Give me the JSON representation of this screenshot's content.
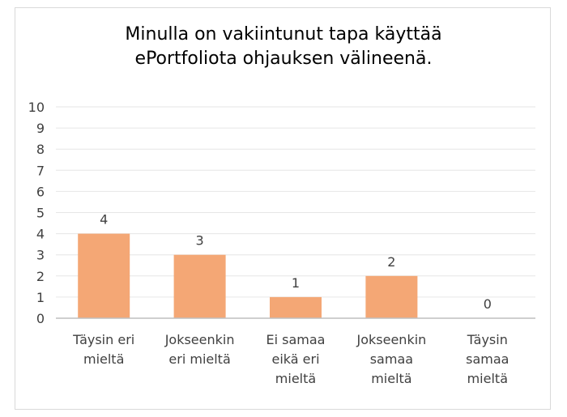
{
  "chart_data": {
    "type": "bar",
    "title_lines": [
      "Minulla on vakiintunut tapa käyttää",
      "ePortfoliota ohjauksen välineenä."
    ],
    "categories": [
      [
        "Täysin eri",
        "mieltä"
      ],
      [
        "Jokseenkin",
        "eri mieltä"
      ],
      [
        "Ei samaa",
        "eikä eri",
        "mieltä"
      ],
      [
        "Jokseenkin",
        "samaa",
        "mieltä"
      ],
      [
        "Täysin",
        "samaa",
        "mieltä"
      ]
    ],
    "values": [
      4,
      3,
      1,
      2,
      0
    ],
    "data_labels": [
      "4",
      "3",
      "1",
      "2",
      "0"
    ],
    "ylim": [
      0,
      10
    ],
    "yticks": [
      "0",
      "1",
      "2",
      "3",
      "4",
      "5",
      "6",
      "7",
      "8",
      "9",
      "10"
    ],
    "grid": true,
    "legend": "none",
    "colors": {
      "bar": "#f4a775",
      "grid": "#e6e6e6",
      "axis": "#bfbfbf",
      "text": "#404040"
    }
  }
}
